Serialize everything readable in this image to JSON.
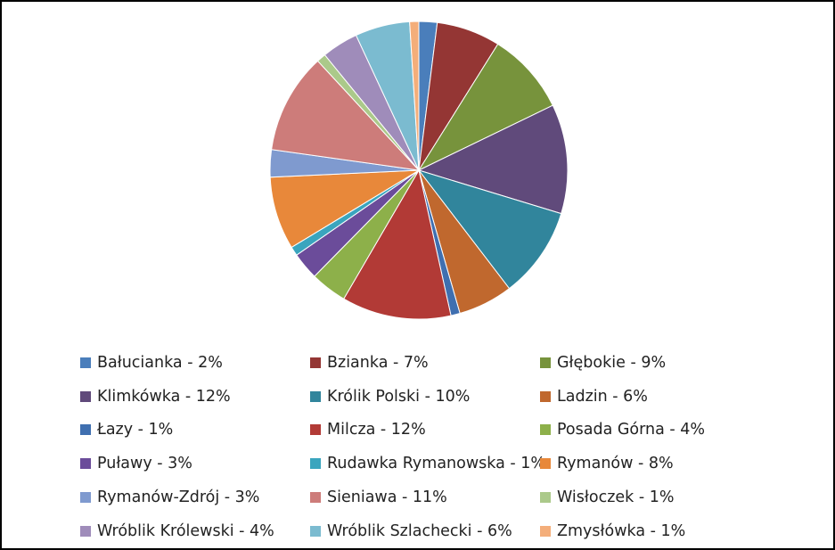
{
  "chart_data": {
    "type": "pie",
    "title": "",
    "start_angle_deg": 0,
    "direction": "clockwise",
    "legend_position": "bottom",
    "slices": [
      {
        "label": "Bałucianka - 2%",
        "name": "Bałucianka",
        "value": 2,
        "color": "#4A7EBB"
      },
      {
        "label": "Bzianka - 7%",
        "name": "Bzianka",
        "value": 7,
        "color": "#943634"
      },
      {
        "label": "Głębokie - 9%",
        "name": "Głębokie",
        "value": 9,
        "color": "#77933C"
      },
      {
        "label": "Klimkówka - 12%",
        "name": "Klimkówka",
        "value": 12,
        "color": "#604A7B"
      },
      {
        "label": "Królik Polski - 10%",
        "name": "Królik Polski",
        "value": 10,
        "color": "#31859C"
      },
      {
        "label": "Ladzin - 6%",
        "name": "Ladzin",
        "value": 6,
        "color": "#C0682E"
      },
      {
        "label": "Łazy - 1%",
        "name": "Łazy",
        "value": 1,
        "color": "#3F6FB0"
      },
      {
        "label": "Milcza - 12%",
        "name": "Milcza",
        "value": 12,
        "color": "#B23A36"
      },
      {
        "label": "Posada Górna - 4%",
        "name": "Posada Górna",
        "value": 4,
        "color": "#8DB04A"
      },
      {
        "label": "Puławy - 3%",
        "name": "Puławy",
        "value": 3,
        "color": "#6B4C9A"
      },
      {
        "label": "Rudawka Rymanowska - 1%",
        "name": "Rudawka Rymanowska",
        "value": 1,
        "color": "#3AA5BE"
      },
      {
        "label": "Rymanów - 8%",
        "name": "Rymanów",
        "value": 8,
        "color": "#E8883A"
      },
      {
        "label": "Rymanów-Zdrój - 3%",
        "name": "Rymanów-Zdrój",
        "value": 3,
        "color": "#7F9ACF"
      },
      {
        "label": "Sieniawa - 11%",
        "name": "Sieniawa",
        "value": 11,
        "color": "#CD7C7A"
      },
      {
        "label": "Wisłoczek - 1%",
        "name": "Wisłoczek",
        "value": 1,
        "color": "#ABC98A"
      },
      {
        "label": "Wróblik Królewski - 4%",
        "name": "Wróblik Królewski",
        "value": 4,
        "color": "#9F8CBA"
      },
      {
        "label": "Wróblik Szlachecki - 6%",
        "name": "Wróblik Szlachecki",
        "value": 6,
        "color": "#7BBBD0"
      },
      {
        "label": "Zmysłówka - 1%",
        "name": "Zmysłówka",
        "value": 1,
        "color": "#F4AE7A"
      }
    ]
  }
}
